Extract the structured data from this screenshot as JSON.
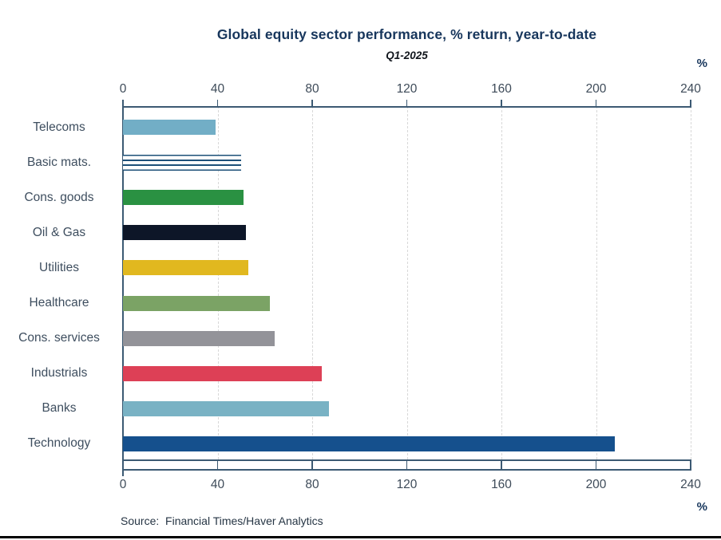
{
  "source": {
    "label": "Source:  Financial Times/Haver Analytics"
  },
  "chart_data": {
    "type": "bar",
    "orientation": "horizontal",
    "title": "Global equity sector performance, % return, year-to-date",
    "subtitle": "Q1-2025",
    "unit": "%",
    "categories": [
      "Telecoms",
      "Basic mats.",
      "Cons. goods",
      "Oil & Gas",
      "Utilities",
      "Healthcare",
      "Cons. services",
      "Industrials",
      "Banks",
      "Technology"
    ],
    "values": [
      39,
      50,
      51,
      52,
      53,
      62,
      64,
      84,
      87,
      208
    ],
    "bar_colors": [
      "#72aec6",
      "pattern-hlines",
      "#2a9142",
      "#0d1628",
      "#e1b81f",
      "#7ba365",
      "#939399",
      "#dd4056",
      "#79b2c4",
      "#15508d"
    ],
    "pattern_color": "#1d5078",
    "xlabel": "",
    "ylabel": "",
    "xlim": [
      0,
      240
    ],
    "xticks": [
      0,
      40,
      80,
      120,
      160,
      200,
      240
    ],
    "grid": "vertical-dashed",
    "legend": "none",
    "axis_color": "#3c5a73",
    "grid_color": "#d8d8d8",
    "title_color": "#17365c",
    "label_color": "#3e4e5f"
  }
}
